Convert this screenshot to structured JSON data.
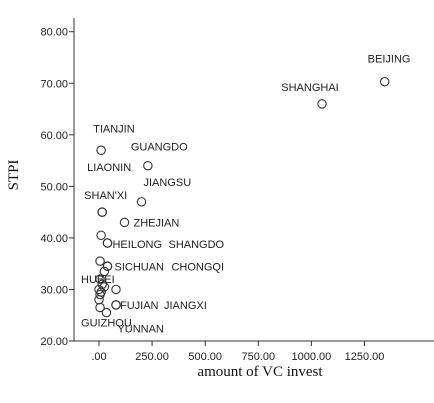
{
  "chart_data": {
    "type": "scatter",
    "title": "",
    "xlabel": "amount of VC invest",
    "ylabel": "STPI",
    "xlim": [
      -100,
      1400
    ],
    "ylim": [
      20,
      82
    ],
    "xticks": [
      ".00",
      "250.00",
      "500.00",
      "750.00",
      "1000.00",
      "1250.00"
    ],
    "xtick_values": [
      0,
      250,
      500,
      750,
      1000,
      1250
    ],
    "yticks": [
      "20.00",
      "30.00",
      "40.00",
      "50.00",
      "60.00",
      "70.00",
      "80.00"
    ],
    "ytick_values": [
      20,
      30,
      40,
      50,
      60,
      70,
      80
    ],
    "grid": false,
    "points": [
      {
        "label": "BEIJING",
        "x": 1345,
        "y": 70.3
      },
      {
        "label": "SHANGHAI",
        "x": 1050,
        "y": 66.0
      },
      {
        "label": "TIANJIN",
        "x": 10,
        "y": 57.0
      },
      {
        "label": "GUANGDO",
        "x": 230,
        "y": 54.0
      },
      {
        "label": "LIAONIN",
        "x": 15,
        "y": 45.0
      },
      {
        "label": "JIANGSU",
        "x": 200,
        "y": 47.0
      },
      {
        "label": "SHAN'XI",
        "x": 15,
        "y": 45.0
      },
      {
        "label": "ZHEJIAN",
        "x": 120,
        "y": 43.0
      },
      {
        "label": "",
        "x": 10,
        "y": 40.5
      },
      {
        "label": "HEILONG",
        "x": 40,
        "y": 39.0
      },
      {
        "label": "SHANGDO",
        "x": 40,
        "y": 39.0
      },
      {
        "label": "SICHUAN",
        "x": 40,
        "y": 34.5
      },
      {
        "label": "CHONGQI",
        "x": 40,
        "y": 34.5
      },
      {
        "label": "",
        "x": 5,
        "y": 35.5
      },
      {
        "label": "",
        "x": 25,
        "y": 33.5
      },
      {
        "label": "HUBEI",
        "x": 5,
        "y": 32.0
      },
      {
        "label": "",
        "x": 15,
        "y": 31.0
      },
      {
        "label": "",
        "x": 25,
        "y": 30.5
      },
      {
        "label": "",
        "x": 0,
        "y": 30.0
      },
      {
        "label": "",
        "x": 10,
        "y": 29.5
      },
      {
        "label": "",
        "x": 80,
        "y": 30.0
      },
      {
        "label": "",
        "x": 5,
        "y": 29.0
      },
      {
        "label": "",
        "x": 0,
        "y": 28.0
      },
      {
        "label": "FUJIAN",
        "x": 80,
        "y": 27.0
      },
      {
        "label": "JIANGXI",
        "x": 80,
        "y": 27.0
      },
      {
        "label": "GUIZHOU",
        "x": 5,
        "y": 26.5
      },
      {
        "label": "YUNNAN",
        "x": 35,
        "y": 25.5
      }
    ]
  }
}
